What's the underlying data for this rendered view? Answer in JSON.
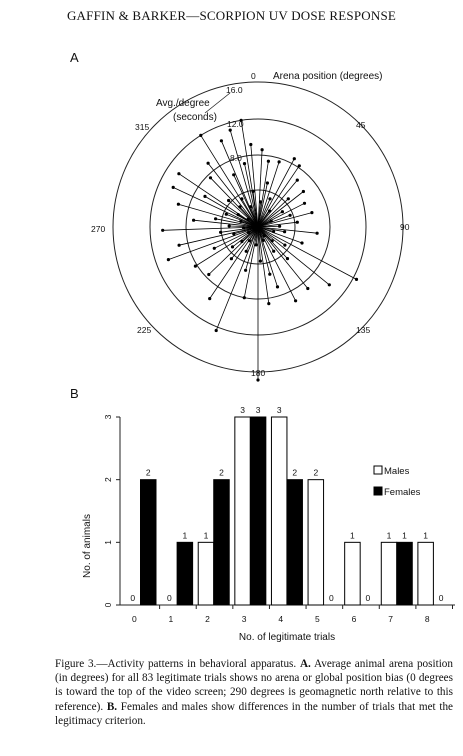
{
  "header": {
    "running_head": "GAFFIN & BARKER—SCORPION UV DOSE RESPONSE"
  },
  "panel_a": {
    "letter": "A",
    "position_label": "Arena position (degrees)",
    "radius_label_line1": "Avg./degree",
    "radius_label_line2": "(seconds)",
    "angle_labels": [
      "0",
      "45",
      "90",
      "135",
      "180",
      "225",
      "270",
      "315"
    ],
    "radial_ticks": [
      "16.0",
      "12.0",
      "8.0"
    ]
  },
  "panel_b": {
    "letter": "B",
    "legend": {
      "males": "Males",
      "females": "Females"
    }
  },
  "chart_data": [
    {
      "type": "scatter",
      "title": "",
      "xlabel": "Arena position (degrees)",
      "ylabel": "Avg./degree (seconds)",
      "radial_ticks": [
        16.0,
        12.0,
        8.0
      ],
      "angle_ticks": [
        0,
        45,
        90,
        135,
        180,
        225,
        270,
        315
      ],
      "points": [
        {
          "a": 180,
          "r": 17.0
        },
        {
          "a": 202,
          "r": 12.4
        },
        {
          "a": 250,
          "r": 10.6
        },
        {
          "a": 257,
          "r": 9.0
        },
        {
          "a": 268,
          "r": 10.6
        },
        {
          "a": 286,
          "r": 9.2
        },
        {
          "a": 295,
          "r": 10.4
        },
        {
          "a": 304,
          "r": 10.6
        },
        {
          "a": 328,
          "r": 12.0
        },
        {
          "a": 337,
          "r": 10.4
        },
        {
          "a": 344,
          "r": 11.2
        },
        {
          "a": 351,
          "r": 12.0
        },
        {
          "a": 355,
          "r": 9.2
        },
        {
          "a": 3,
          "r": 8.6
        },
        {
          "a": 9,
          "r": 7.4
        },
        {
          "a": 18,
          "r": 7.6
        },
        {
          "a": 28,
          "r": 8.6
        },
        {
          "a": 34,
          "r": 8.2
        },
        {
          "a": 40,
          "r": 6.8
        },
        {
          "a": 52,
          "r": 6.4
        },
        {
          "a": 63,
          "r": 5.8
        },
        {
          "a": 75,
          "r": 6.2
        },
        {
          "a": 96,
          "r": 6.6
        },
        {
          "a": 118,
          "r": 12.4
        },
        {
          "a": 129,
          "r": 10.2
        },
        {
          "a": 141,
          "r": 8.8
        },
        {
          "a": 153,
          "r": 9.2
        },
        {
          "a": 162,
          "r": 7.0
        },
        {
          "a": 172,
          "r": 8.6
        },
        {
          "a": 191,
          "r": 8.0
        },
        {
          "a": 214,
          "r": 9.6
        },
        {
          "a": 226,
          "r": 7.6
        },
        {
          "a": 238,
          "r": 8.2
        },
        {
          "a": 276,
          "r": 7.2
        },
        {
          "a": 300,
          "r": 6.8
        },
        {
          "a": 316,
          "r": 7.6
        },
        {
          "a": 322,
          "r": 9.0
        },
        {
          "a": 335,
          "r": 6.4
        },
        {
          "a": 348,
          "r": 7.2
        },
        {
          "a": 12,
          "r": 5.0
        },
        {
          "a": 47,
          "r": 4.6
        },
        {
          "a": 83,
          "r": 4.4
        },
        {
          "a": 110,
          "r": 5.2
        },
        {
          "a": 137,
          "r": 4.8
        },
        {
          "a": 166,
          "r": 5.4
        },
        {
          "a": 196,
          "r": 5.0
        },
        {
          "a": 220,
          "r": 4.6
        },
        {
          "a": 244,
          "r": 5.4
        },
        {
          "a": 262,
          "r": 4.2
        },
        {
          "a": 281,
          "r": 4.8
        },
        {
          "a": 292,
          "r": 3.8
        },
        {
          "a": 312,
          "r": 4.4
        },
        {
          "a": 330,
          "r": 3.6
        },
        {
          "a": 352,
          "r": 4.0
        },
        {
          "a": 23,
          "r": 3.4
        },
        {
          "a": 58,
          "r": 3.2
        },
        {
          "a": 70,
          "r": 3.8
        },
        {
          "a": 100,
          "r": 3.0
        },
        {
          "a": 124,
          "r": 3.6
        },
        {
          "a": 147,
          "r": 3.2
        },
        {
          "a": 176,
          "r": 3.8
        },
        {
          "a": 206,
          "r": 3.0
        },
        {
          "a": 232,
          "r": 3.6
        },
        {
          "a": 254,
          "r": 2.8
        },
        {
          "a": 272,
          "r": 3.2
        },
        {
          "a": 302,
          "r": 2.6
        },
        {
          "a": 318,
          "r": 3.0
        },
        {
          "a": 340,
          "r": 2.4
        },
        {
          "a": 6,
          "r": 2.8
        },
        {
          "a": 36,
          "r": 2.2
        },
        {
          "a": 88,
          "r": 2.4
        },
        {
          "a": 106,
          "r": 1.8
        },
        {
          "a": 134,
          "r": 2.2
        },
        {
          "a": 158,
          "r": 1.6
        },
        {
          "a": 186,
          "r": 2.0
        },
        {
          "a": 212,
          "r": 1.8
        },
        {
          "a": 228,
          "r": 2.4
        },
        {
          "a": 266,
          "r": 1.6
        },
        {
          "a": 288,
          "r": 2.0
        },
        {
          "a": 308,
          "r": 1.4
        },
        {
          "a": 66,
          "r": 1.6
        },
        {
          "a": 145,
          "r": 1.2
        },
        {
          "a": 240,
          "r": 1.2
        }
      ]
    },
    {
      "type": "bar",
      "title": "",
      "xlabel": "No. of legitimate trials",
      "ylabel": "No. of animals",
      "categories": [
        "0",
        "1",
        "2",
        "3",
        "4",
        "5",
        "6",
        "7",
        "8"
      ],
      "ylim": [
        0,
        3
      ],
      "yticks": [
        "0",
        "1",
        "2",
        "3"
      ],
      "series": [
        {
          "name": "Males",
          "color": "#ffffff",
          "values": [
            0,
            0,
            1,
            3,
            3,
            2,
            1,
            1,
            1
          ]
        },
        {
          "name": "Females",
          "color": "#000000",
          "values": [
            2,
            1,
            2,
            3,
            2,
            0,
            0,
            1,
            0
          ]
        }
      ],
      "legend_position": "right"
    }
  ],
  "caption": {
    "intro": "Figure 3.—Activity patterns in behavioral apparatus. ",
    "a_label": "A.",
    "a_text": " Average animal arena position (in degrees) for all 83 legitimate trials shows no arena or global position bias (0 degrees is toward the top of the video screen; 290 degrees is geomagnetic north relative to this reference). ",
    "b_label": "B.",
    "b_text": " Females and males show differences in the number of trials that met the legitimacy criterion."
  }
}
